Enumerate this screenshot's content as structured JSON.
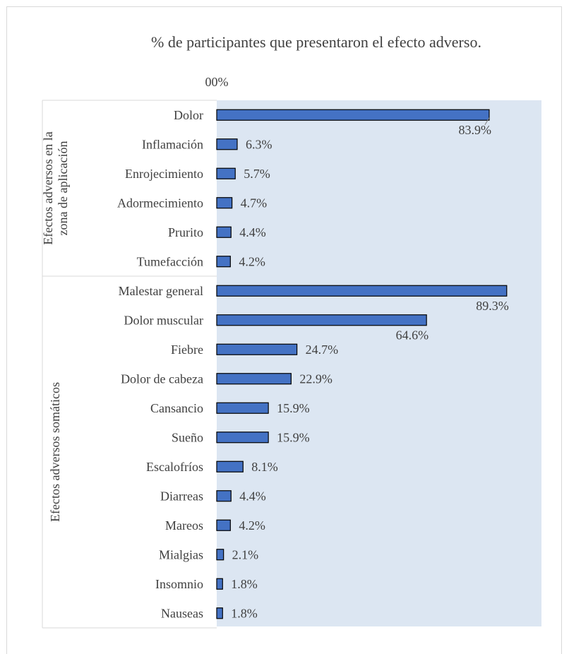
{
  "chart_data": {
    "type": "bar",
    "orientation": "horizontal",
    "title": "% de participantes que presentaron el efecto adverso.",
    "x_tick_label": "00%",
    "xlim": [
      0,
      100
    ],
    "legend": "none",
    "grid": false,
    "plot_background": "#dce6f2",
    "bar_color": "#4472c4",
    "bar_border": "#000000",
    "groups": [
      {
        "name": "Efectos adversos en la zona de aplicación",
        "start": 0,
        "count": 6
      },
      {
        "name": "Efectos adversos somáticos",
        "start": 6,
        "count": 12
      }
    ],
    "categories": [
      "Dolor",
      "Inflamación",
      "Enrojecimiento",
      "Adormecimiento",
      "Prurito",
      "Tumefacción",
      "Malestar general",
      "Dolor muscular",
      "Fiebre",
      "Dolor de cabeza",
      "Cansancio",
      "Sueño",
      "Escalofríos",
      "Diarreas",
      "Mareos",
      "Mialgias",
      "Insomnio",
      "Nauseas"
    ],
    "values": [
      83.9,
      6.3,
      5.7,
      4.7,
      4.4,
      4.2,
      89.3,
      64.6,
      24.7,
      22.9,
      15.9,
      15.9,
      8.1,
      4.4,
      4.2,
      2.1,
      1.8,
      1.8
    ],
    "labels": [
      "83.9%",
      "6.3%",
      "5.7%",
      "4.7%",
      "4.4%",
      "4.2%",
      "89.3%",
      "64.6%",
      "24.7%",
      "22.9%",
      "15.9%",
      "15.9%",
      "8.1%",
      "4.4%",
      "4.2%",
      "2.1%",
      "1.8%",
      "1.8%"
    ]
  }
}
